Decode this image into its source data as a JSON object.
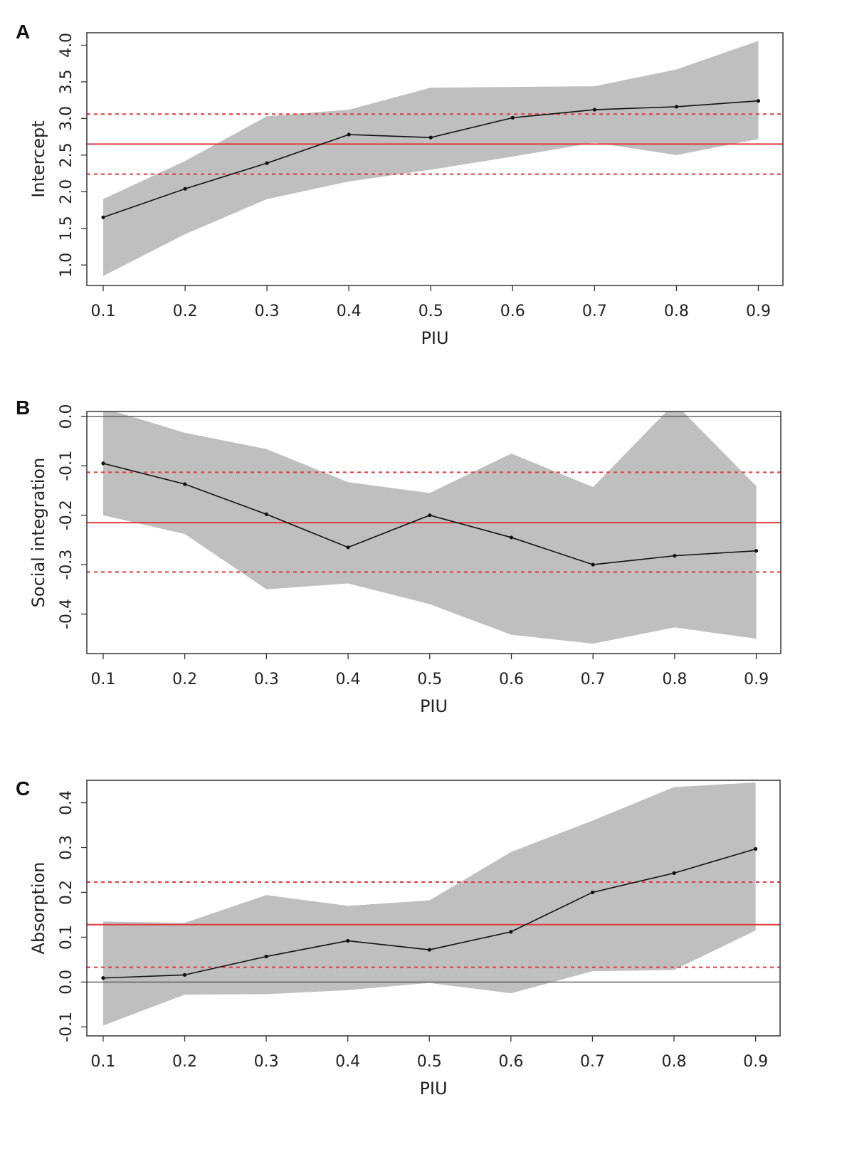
{
  "figure": {
    "panels": [
      "A",
      "B",
      "C"
    ]
  },
  "chart_data": [
    {
      "panel": "A",
      "type": "line",
      "xlabel": "PIU",
      "ylabel": "Intercept",
      "x": [
        0.1,
        0.2,
        0.3,
        0.4,
        0.5,
        0.6,
        0.7,
        0.8,
        0.9
      ],
      "xticks": [
        "0.1",
        "0.2",
        "0.3",
        "0.4",
        "0.5",
        "0.6",
        "0.7",
        "0.8",
        "0.9"
      ],
      "yticks": [
        1.0,
        1.5,
        2.0,
        2.5,
        3.0,
        3.5,
        4.0
      ],
      "ytick_labels": [
        "1.0",
        "1.5",
        "2.0",
        "2.5",
        "3.0",
        "3.5",
        "4.0"
      ],
      "xlim": [
        0.08,
        0.93
      ],
      "ylim": [
        0.72,
        4.17
      ],
      "estimate": [
        1.65,
        2.04,
        2.39,
        2.78,
        2.74,
        3.01,
        3.12,
        3.16,
        3.24
      ],
      "ci_upper": [
        1.9,
        2.42,
        3.03,
        3.12,
        3.42,
        3.43,
        3.44,
        3.67,
        4.06
      ],
      "ci_lower": [
        0.85,
        1.42,
        1.9,
        2.14,
        2.3,
        2.48,
        2.67,
        2.5,
        2.72
      ],
      "ols_estimate": 2.65,
      "ols_ci": [
        2.24,
        3.06
      ],
      "zero_line": false,
      "colors": {
        "ci_band": "#bfbfbf",
        "estimate_line": "#111111",
        "ols_line": "#e0393e"
      }
    },
    {
      "panel": "B",
      "type": "line",
      "xlabel": "PIU",
      "ylabel": "Social integration",
      "x": [
        0.1,
        0.2,
        0.3,
        0.4,
        0.5,
        0.6,
        0.7,
        0.8,
        0.9
      ],
      "xticks": [
        "0.1",
        "0.2",
        "0.3",
        "0.4",
        "0.5",
        "0.6",
        "0.7",
        "0.8",
        "0.9"
      ],
      "yticks": [
        -0.4,
        -0.3,
        -0.2,
        -0.1,
        0.0
      ],
      "ytick_labels": [
        "-0.4",
        "-0.3",
        "-0.2",
        "-0.1",
        "0.0"
      ],
      "xlim": [
        0.08,
        0.93
      ],
      "ylim": [
        -0.48,
        0.01
      ],
      "estimate": [
        -0.095,
        -0.137,
        -0.198,
        -0.265,
        -0.2,
        -0.245,
        -0.3,
        -0.282,
        -0.272
      ],
      "ci_upper": [
        0.017,
        -0.033,
        -0.066,
        -0.133,
        -0.155,
        -0.075,
        -0.143,
        0.027,
        -0.141
      ],
      "ci_lower": [
        -0.2,
        -0.238,
        -0.35,
        -0.338,
        -0.38,
        -0.442,
        -0.46,
        -0.427,
        -0.45
      ],
      "ols_estimate": -0.215,
      "ols_ci": [
        -0.315,
        -0.113
      ],
      "zero_line": true,
      "colors": {
        "ci_band": "#bfbfbf",
        "estimate_line": "#111111",
        "ols_line": "#e0393e"
      }
    },
    {
      "panel": "C",
      "type": "line",
      "xlabel": "PIU",
      "ylabel": "Absorption",
      "x": [
        0.1,
        0.2,
        0.3,
        0.4,
        0.5,
        0.6,
        0.7,
        0.8,
        0.9
      ],
      "xticks": [
        "0.1",
        "0.2",
        "0.3",
        "0.4",
        "0.5",
        "0.6",
        "0.7",
        "0.8",
        "0.9"
      ],
      "yticks": [
        -0.1,
        0.0,
        0.1,
        0.2,
        0.3,
        0.4
      ],
      "ytick_labels": [
        "-0.1",
        "0.0",
        "0.1",
        "0.2",
        "0.3",
        "0.4"
      ],
      "xlim": [
        0.08,
        0.93
      ],
      "ylim": [
        -0.12,
        0.45
      ],
      "estimate": [
        0.009,
        0.016,
        0.057,
        0.092,
        0.072,
        0.112,
        0.2,
        0.243,
        0.297
      ],
      "ci_upper": [
        0.135,
        0.132,
        0.194,
        0.17,
        0.182,
        0.29,
        0.36,
        0.435,
        0.445
      ],
      "ci_lower": [
        -0.097,
        -0.028,
        -0.027,
        -0.018,
        -0.002,
        -0.025,
        0.024,
        0.027,
        0.115
      ],
      "ols_estimate": 0.128,
      "ols_ci": [
        0.033,
        0.223
      ],
      "zero_line": true,
      "colors": {
        "ci_band": "#bfbfbf",
        "estimate_line": "#111111",
        "ols_line": "#e0393e"
      }
    }
  ]
}
